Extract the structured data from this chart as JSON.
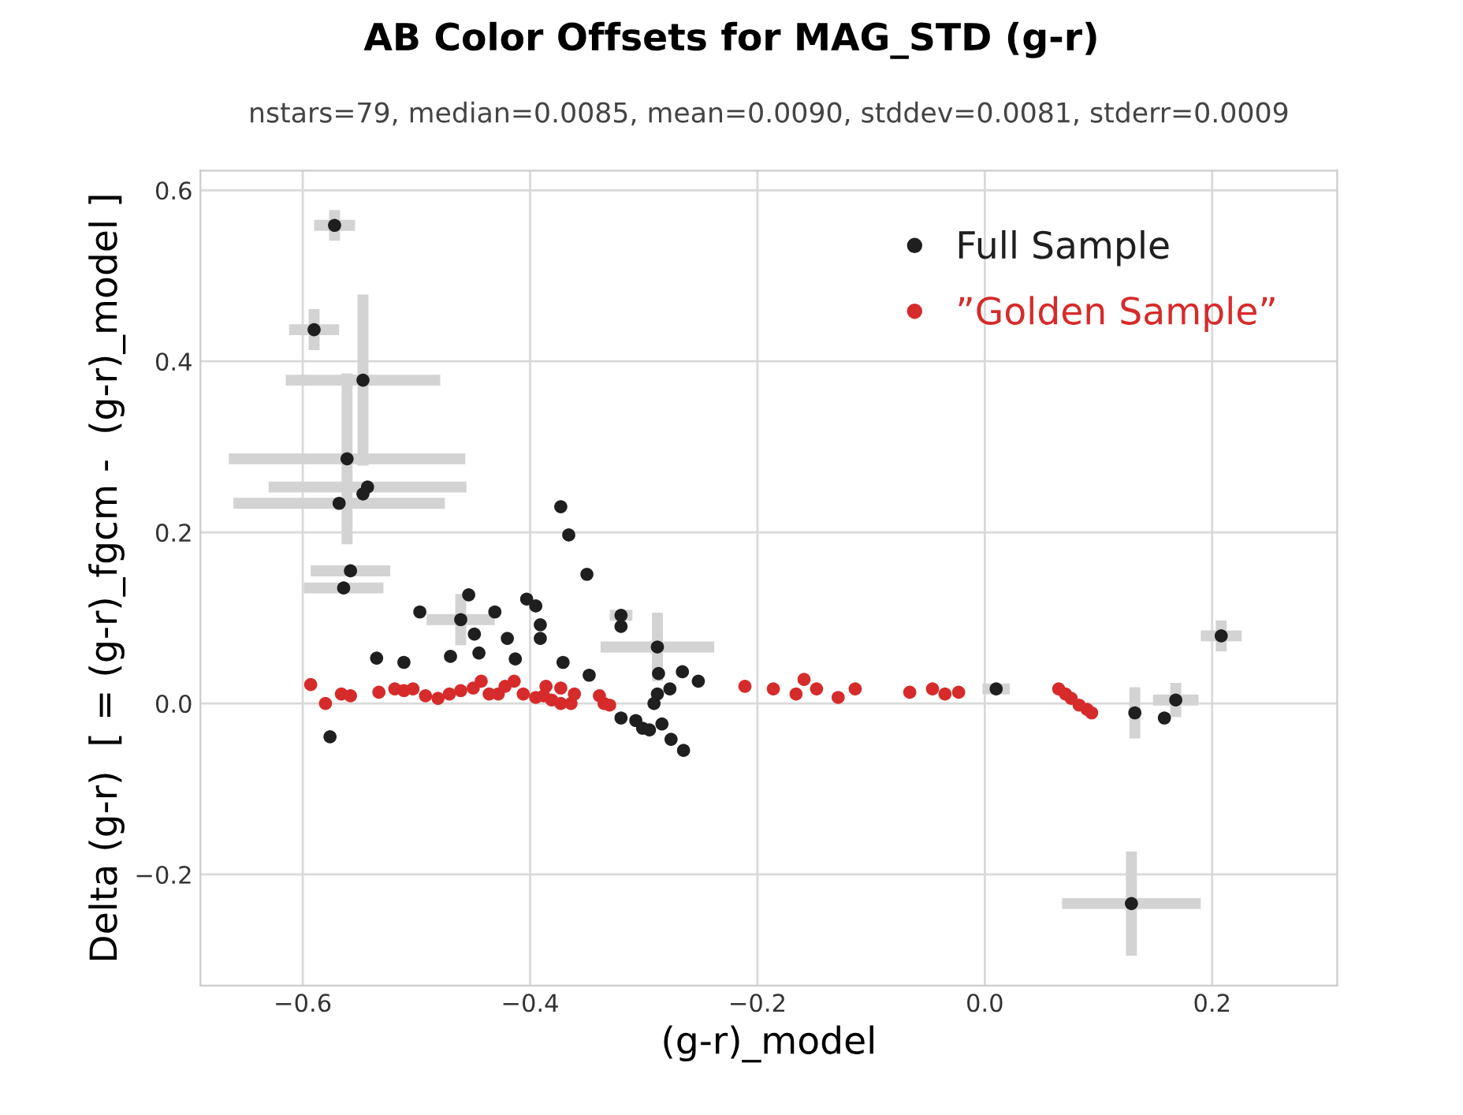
{
  "chart_data": {
    "type": "scatter",
    "title": "AB Color Offsets for MAG_STD (g-r)",
    "subtitle": "nstars=79, median=0.0085, mean=0.0090, stddev=0.0081, stderr=0.0009",
    "xlabel": "(g-r)_model",
    "ylabel": "Delta (g-r)  [ = (g-r)_fgcm -  (g-r)_model ]",
    "xlim": [
      -0.69,
      0.31
    ],
    "ylim": [
      -0.33,
      0.623
    ],
    "xticks": [
      {
        "value": -0.6,
        "label": "−0.6"
      },
      {
        "value": -0.4,
        "label": "−0.4"
      },
      {
        "value": -0.2,
        "label": "−0.2"
      },
      {
        "value": 0,
        "label": "0.0"
      },
      {
        "value": 0.2,
        "label": "0.2"
      }
    ],
    "yticks": [
      {
        "value": -0.2,
        "label": "−0.2"
      },
      {
        "value": 0,
        "label": "0.0"
      },
      {
        "value": 0.2,
        "label": "0.2"
      },
      {
        "value": 0.4,
        "label": "0.4"
      },
      {
        "value": 0.6,
        "label": "0.6"
      }
    ],
    "grid": true,
    "legend": "top right",
    "marker": "circle",
    "series": [
      {
        "name": "Full Sample",
        "color": "#1f1f1f",
        "x": [
          -0.572,
          -0.59,
          -0.547,
          -0.561,
          -0.543,
          -0.547,
          -0.568,
          -0.558,
          -0.564,
          -0.373,
          -0.366,
          -0.35,
          -0.454,
          -0.497,
          -0.431,
          -0.403,
          -0.395,
          -0.461,
          -0.391,
          -0.449,
          -0.42,
          -0.391,
          -0.445,
          -0.535,
          -0.511,
          -0.413,
          -0.47,
          -0.371,
          -0.348,
          -0.576,
          -0.32,
          -0.32,
          -0.288,
          -0.287,
          -0.266,
          -0.252,
          -0.277,
          -0.288,
          -0.291,
          -0.32,
          -0.307,
          -0.301,
          -0.295,
          -0.284,
          -0.276,
          -0.265,
          0.01,
          0.132,
          0.158,
          0.168,
          0.208,
          0.129
        ],
        "values": [
          0.559,
          0.437,
          0.378,
          0.286,
          0.253,
          0.245,
          0.234,
          0.155,
          0.135,
          0.23,
          0.197,
          0.151,
          0.127,
          0.107,
          0.107,
          0.122,
          0.114,
          0.098,
          0.092,
          0.081,
          0.076,
          0.076,
          0.059,
          0.053,
          0.048,
          0.052,
          0.055,
          0.048,
          0.033,
          -0.039,
          0.103,
          0.09,
          0.066,
          0.035,
          0.037,
          0.026,
          0.017,
          0.011,
          0.0,
          -0.017,
          -0.02,
          -0.029,
          -0.031,
          -0.024,
          -0.042,
          -0.055,
          0.017,
          -0.011,
          -0.017,
          0.004,
          0.079,
          -0.234
        ],
        "xerrors": [
          0.018,
          0.022,
          0.068,
          0.104,
          0.087,
          null,
          0.093,
          0.035,
          0.035,
          null,
          null,
          null,
          null,
          null,
          null,
          null,
          null,
          0.03,
          null,
          null,
          null,
          null,
          null,
          null,
          null,
          null,
          null,
          null,
          null,
          null,
          0.01,
          null,
          0.05,
          null,
          null,
          null,
          null,
          null,
          null,
          null,
          null,
          null,
          null,
          null,
          null,
          null,
          0.012,
          null,
          null,
          0.02,
          0.018,
          0.061
        ],
        "errors": [
          0.018,
          0.024,
          0.1,
          0.1,
          null,
          null,
          null,
          null,
          null,
          null,
          null,
          null,
          null,
          null,
          null,
          null,
          null,
          0.03,
          null,
          null,
          null,
          null,
          null,
          null,
          null,
          null,
          null,
          null,
          null,
          null,
          null,
          null,
          0.04,
          null,
          null,
          null,
          null,
          null,
          null,
          null,
          null,
          null,
          null,
          null,
          null,
          null,
          null,
          0.03,
          null,
          0.02,
          0.018,
          0.061
        ]
      },
      {
        "name": "”Golden Sample”",
        "color": "#d62b2b",
        "x": [
          -0.593,
          -0.58,
          -0.566,
          -0.558,
          -0.533,
          -0.519,
          -0.511,
          -0.503,
          -0.492,
          -0.481,
          -0.471,
          -0.461,
          -0.45,
          -0.443,
          -0.436,
          -0.428,
          -0.422,
          -0.414,
          -0.406,
          -0.395,
          -0.388,
          -0.381,
          -0.373,
          -0.364,
          -0.361,
          -0.373,
          -0.386,
          -0.339,
          -0.335,
          -0.33,
          -0.211,
          -0.186,
          -0.159,
          -0.148,
          -0.166,
          -0.129,
          -0.114,
          -0.066,
          -0.046,
          -0.035,
          -0.023,
          0.065,
          0.071,
          0.076,
          0.083,
          0.09,
          0.094
        ],
        "values": [
          0.022,
          0.0,
          0.011,
          0.009,
          0.013,
          0.017,
          0.015,
          0.017,
          0.009,
          0.006,
          0.011,
          0.015,
          0.018,
          0.026,
          0.011,
          0.011,
          0.02,
          0.026,
          0.011,
          0.007,
          0.009,
          0.004,
          0.0,
          0.0,
          0.011,
          0.018,
          0.02,
          0.009,
          0.0,
          -0.002,
          0.02,
          0.017,
          0.028,
          0.017,
          0.011,
          0.007,
          0.017,
          0.013,
          0.017,
          0.011,
          0.013,
          0.017,
          0.011,
          0.006,
          -0.002,
          -0.007,
          -0.011
        ]
      }
    ]
  }
}
